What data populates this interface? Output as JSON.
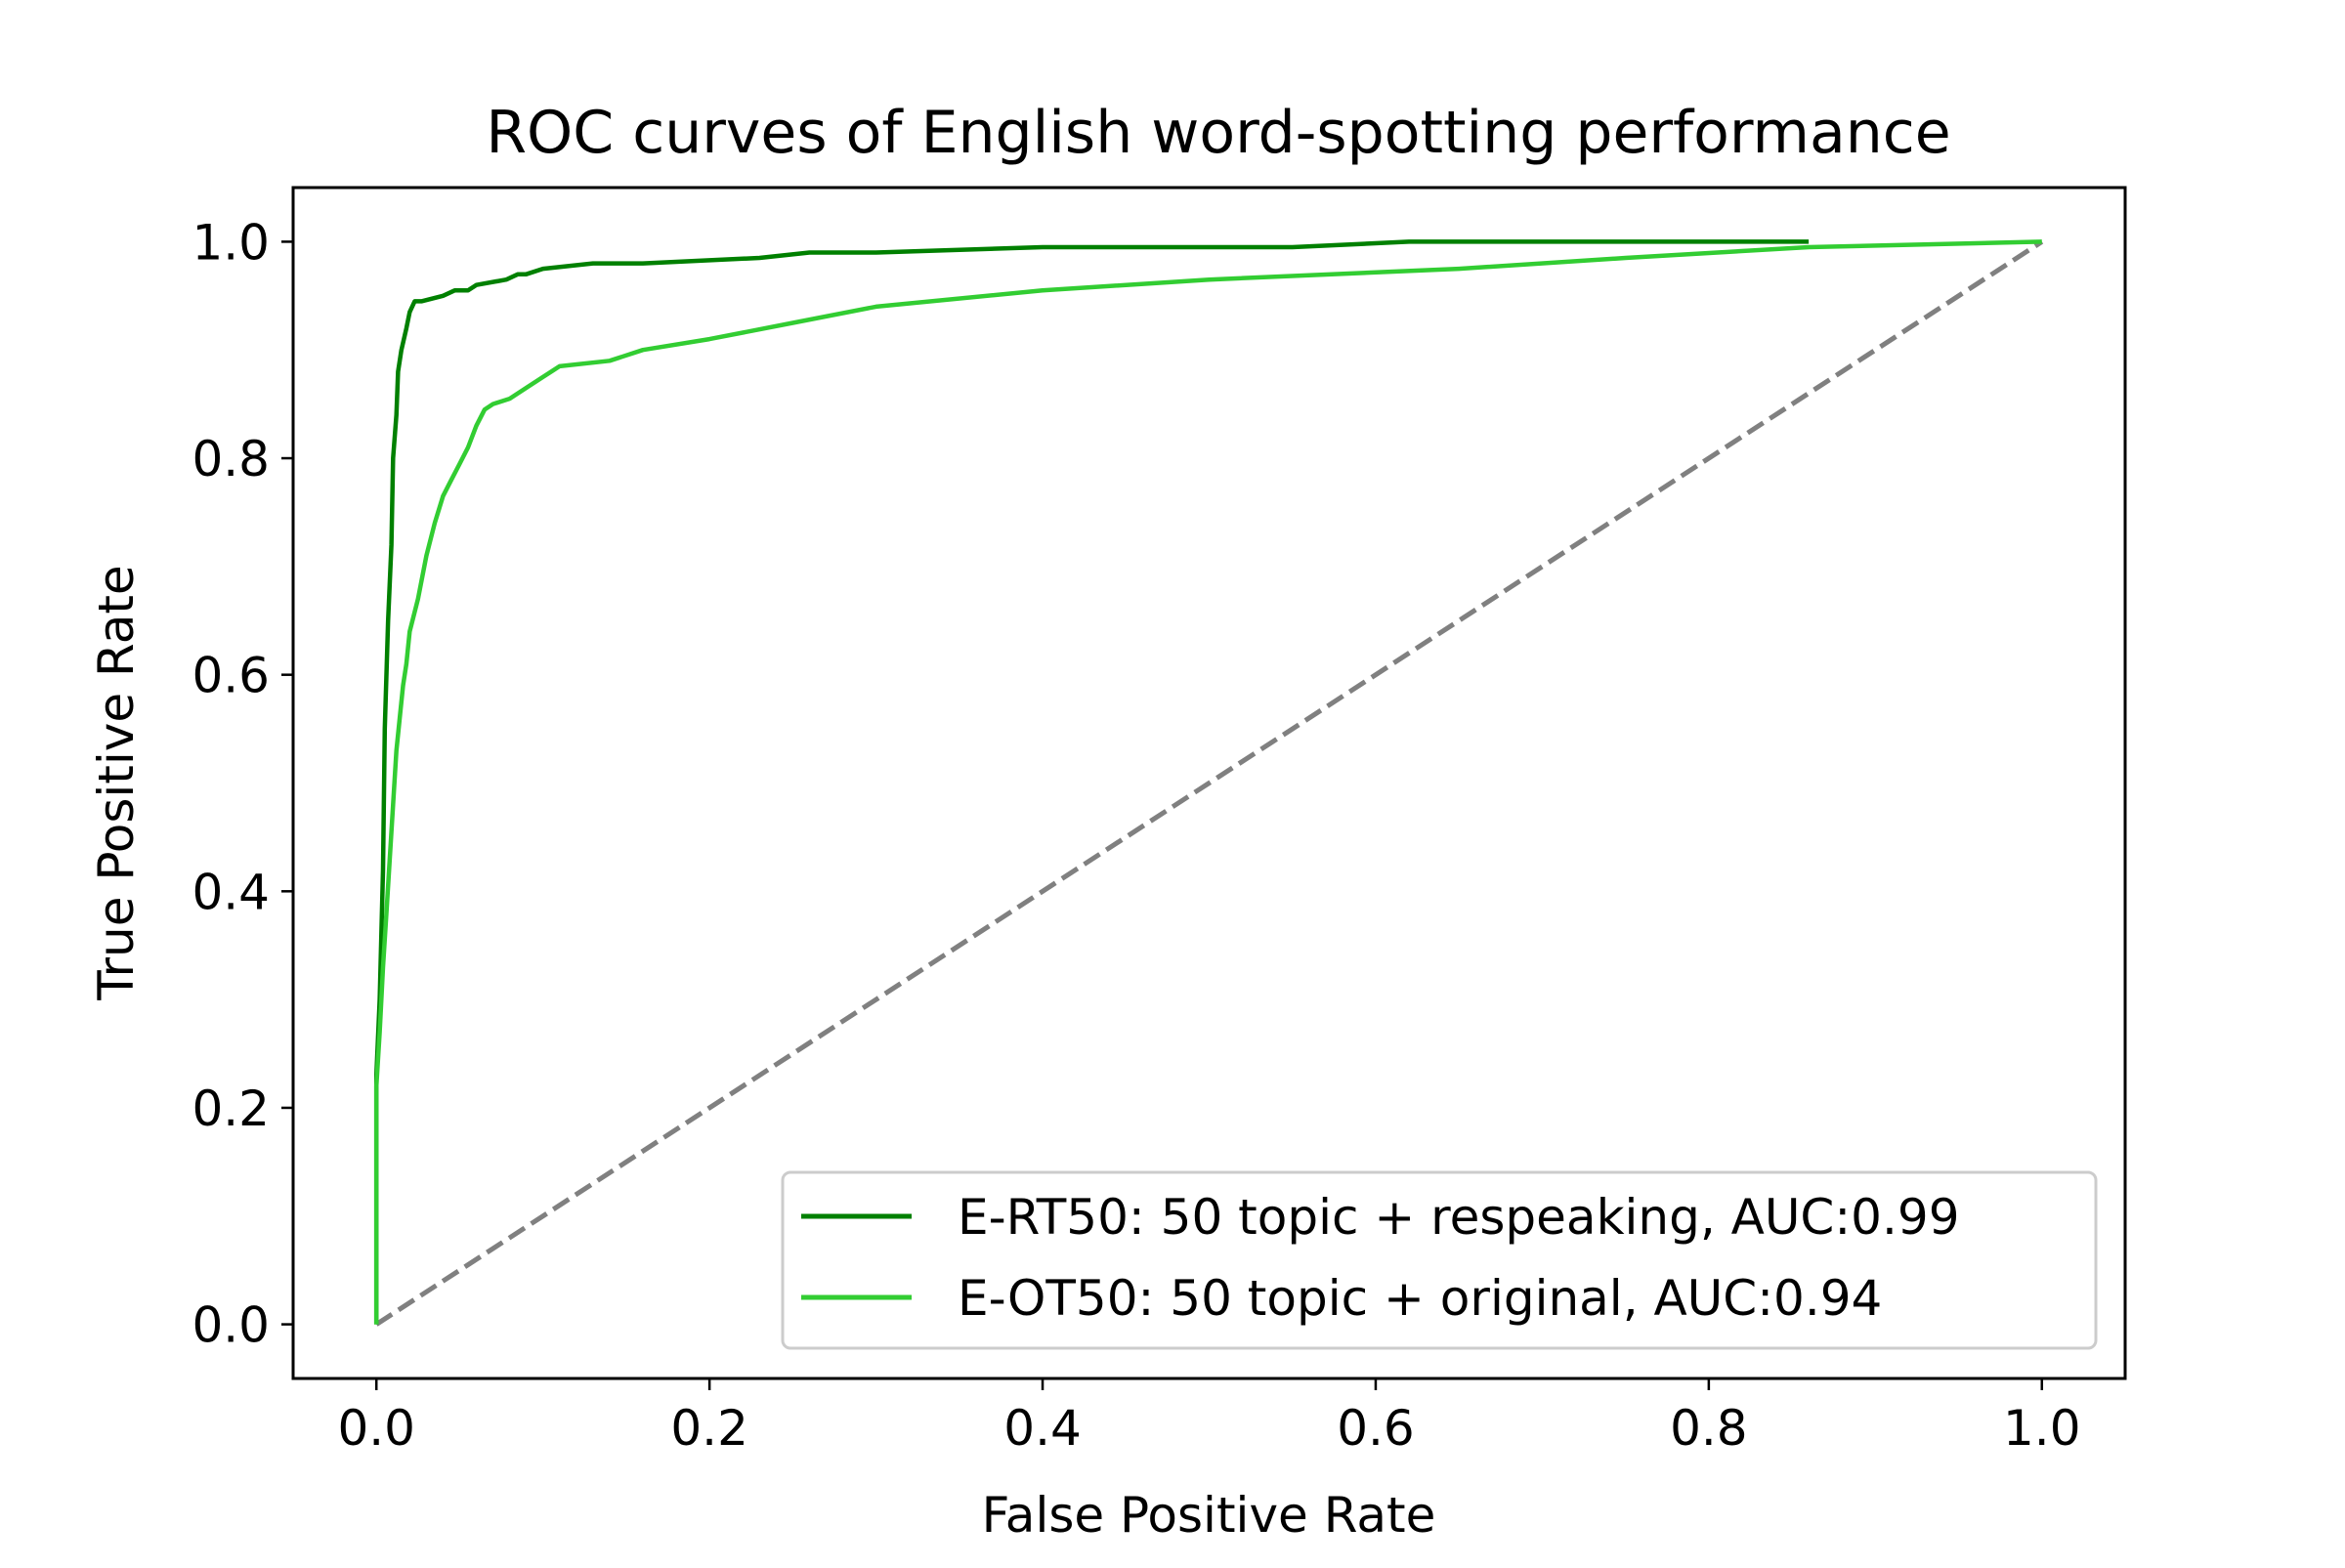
{
  "chart_data": {
    "type": "line",
    "title": "ROC curves of English word-spotting performance",
    "xlabel": "False Positive Rate",
    "ylabel": "True Positive Rate",
    "xlim": [
      -0.05,
      1.05
    ],
    "ylim": [
      -0.05,
      1.05
    ],
    "xticks": [
      "0.0",
      "0.2",
      "0.4",
      "0.6",
      "0.8",
      "1.0"
    ],
    "yticks": [
      "0.0",
      "0.2",
      "0.4",
      "0.6",
      "0.8",
      "1.0"
    ],
    "grid": false,
    "legend_position": "lower right",
    "series": [
      {
        "name": "E-RT50: 50 topic + respeaking, AUC:0.99",
        "color": "#008000",
        "style": "solid",
        "x": [
          0,
          0,
          0.002,
          0.004,
          0.005,
          0.007,
          0.009,
          0.01,
          0.012,
          0.013,
          0.015,
          0.018,
          0.02,
          0.023,
          0.027,
          0.04,
          0.047,
          0.055,
          0.06,
          0.078,
          0.085,
          0.09,
          0.1,
          0.13,
          0.16,
          0.23,
          0.26,
          0.3,
          0.4,
          0.55,
          0.62,
          0.86
        ],
        "y": [
          0,
          0.23,
          0.3,
          0.42,
          0.55,
          0.65,
          0.72,
          0.8,
          0.84,
          0.88,
          0.9,
          0.92,
          0.935,
          0.945,
          0.945,
          0.95,
          0.955,
          0.955,
          0.96,
          0.965,
          0.97,
          0.97,
          0.975,
          0.98,
          0.98,
          0.985,
          0.99,
          0.99,
          0.995,
          0.995,
          1.0,
          1.0
        ]
      },
      {
        "name": "E-OT50: 50 topic + original, AUC:0.94",
        "color": "#32cd32",
        "style": "solid",
        "x": [
          0,
          0,
          0.002,
          0.004,
          0.006,
          0.008,
          0.01,
          0.012,
          0.014,
          0.016,
          0.018,
          0.02,
          0.025,
          0.03,
          0.035,
          0.04,
          0.045,
          0.05,
          0.055,
          0.06,
          0.065,
          0.07,
          0.08,
          0.09,
          0.1,
          0.11,
          0.14,
          0.16,
          0.2,
          0.25,
          0.3,
          0.4,
          0.5,
          0.65,
          0.75,
          0.86,
          1.0
        ],
        "y": [
          0,
          0.22,
          0.27,
          0.33,
          0.38,
          0.43,
          0.48,
          0.53,
          0.56,
          0.59,
          0.61,
          0.64,
          0.67,
          0.71,
          0.74,
          0.765,
          0.78,
          0.795,
          0.81,
          0.83,
          0.845,
          0.85,
          0.855,
          0.865,
          0.875,
          0.885,
          0.89,
          0.9,
          0.91,
          0.925,
          0.94,
          0.955,
          0.965,
          0.975,
          0.985,
          0.995,
          1.0
        ]
      },
      {
        "name": "",
        "color": "#808080",
        "style": "dashed",
        "x": [
          0,
          1
        ],
        "y": [
          0,
          1
        ]
      }
    ]
  }
}
